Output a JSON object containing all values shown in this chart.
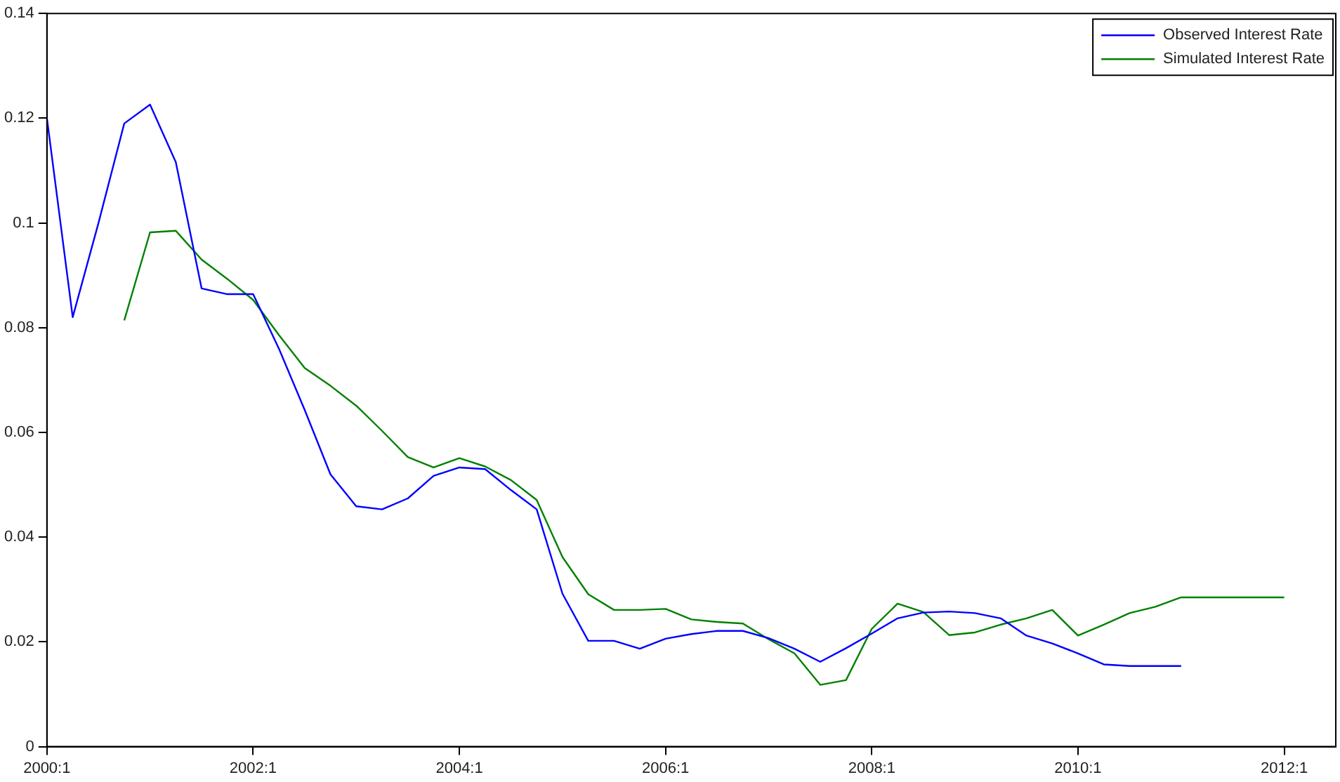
{
  "chart_data": {
    "type": "line",
    "categories": [
      "2000:1",
      null,
      null,
      null,
      null,
      null,
      null,
      null,
      "2002:1",
      null,
      null,
      null,
      null,
      null,
      null,
      null,
      "2004:1",
      null,
      null,
      null,
      null,
      null,
      null,
      null,
      "2006:1",
      null,
      null,
      null,
      null,
      null,
      null,
      null,
      "2008:1",
      null,
      null,
      null,
      null,
      null,
      null,
      null,
      "2010:1",
      null,
      null,
      null,
      null,
      null,
      null,
      null,
      "2012:1",
      null,
      null
    ],
    "series": [
      {
        "name": "Observed Interest Rate",
        "color": "#0000ff",
        "values": [
          0.12,
          0.082,
          0.1,
          0.119,
          0.1226,
          0.1116,
          0.0875,
          0.0864,
          0.0864,
          0.076,
          0.0643,
          0.052,
          0.0459,
          0.0453,
          0.0474,
          0.0517,
          0.0533,
          0.053,
          0.049,
          0.0453,
          0.0292,
          0.0202,
          0.0202,
          0.0187,
          0.0206,
          0.0215,
          0.0221,
          0.0221,
          0.0207,
          0.0187,
          0.0162,
          0.0188,
          0.0216,
          0.0245,
          0.0256,
          0.0258,
          0.0255,
          0.0245,
          0.0212,
          0.0197,
          0.0178,
          0.0157,
          0.0154,
          0.0154,
          0.0154,
          null,
          null,
          null,
          null,
          null,
          null
        ]
      },
      {
        "name": "Simulated Interest Rate",
        "color": "#008000",
        "values": [
          null,
          null,
          null,
          0.0814,
          0.0982,
          0.0985,
          0.093,
          0.0893,
          0.0853,
          0.0786,
          0.0723,
          0.0689,
          0.0651,
          0.0603,
          0.0553,
          0.0533,
          0.0551,
          0.0535,
          0.0509,
          0.0471,
          0.0362,
          0.0291,
          0.0261,
          0.0261,
          0.0263,
          0.0243,
          0.0238,
          0.0235,
          0.0205,
          0.0178,
          0.0118,
          0.0127,
          0.0225,
          0.0273,
          0.0257,
          0.0213,
          0.0218,
          0.0233,
          0.0245,
          0.0261,
          0.0212,
          0.0233,
          0.0255,
          0.0267,
          0.0285,
          0.0285,
          0.0285,
          0.0285,
          0.0285,
          null,
          null
        ]
      }
    ],
    "ylim": [
      0,
      0.14
    ],
    "yticks": [
      0,
      0.02,
      0.04,
      0.06,
      0.08,
      0.1,
      0.12,
      0.14
    ],
    "grid": false,
    "legend": "top right",
    "marker": "none",
    "line_style": "solid"
  }
}
